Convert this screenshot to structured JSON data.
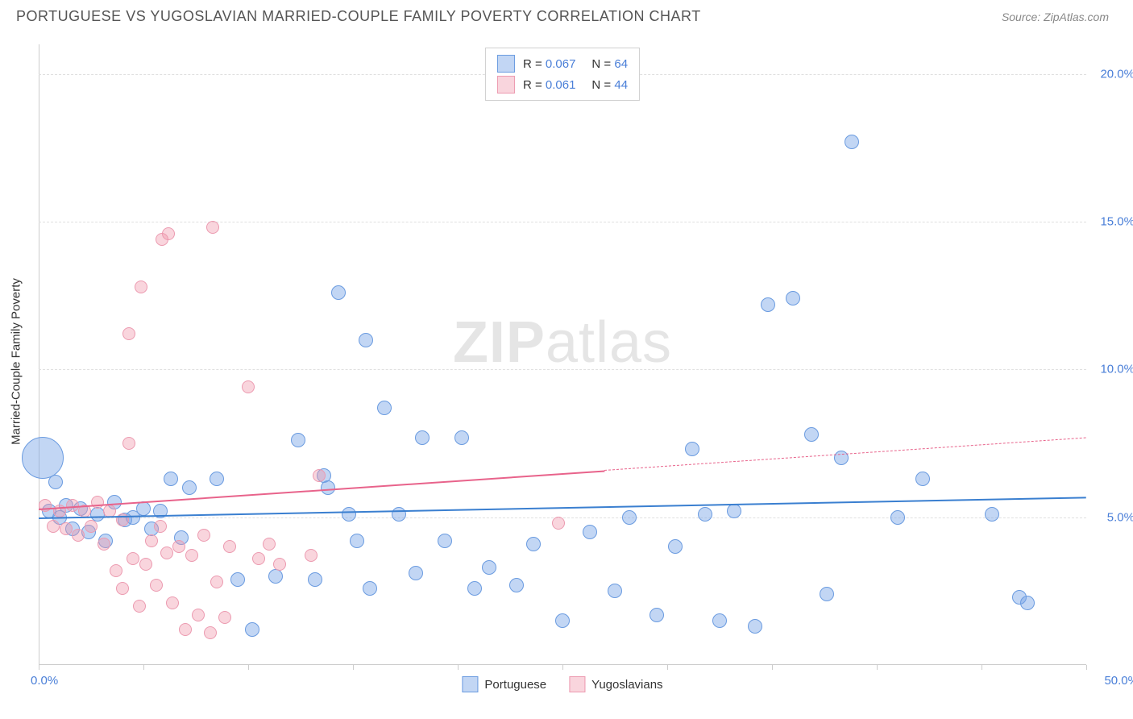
{
  "title": "PORTUGUESE VS YUGOSLAVIAN MARRIED-COUPLE FAMILY POVERTY CORRELATION CHART",
  "source": "Source: ZipAtlas.com",
  "y_axis_label": "Married-Couple Family Poverty",
  "watermark": {
    "zip": "ZIP",
    "atlas": "atlas"
  },
  "chart": {
    "type": "scatter",
    "xlim": [
      0,
      50
    ],
    "ylim": [
      0,
      21
    ],
    "x_ticks": [
      0,
      5,
      10,
      15,
      20,
      25,
      30,
      35,
      40,
      45,
      50
    ],
    "x_tick_labels": {
      "start": "0.0%",
      "end": "50.0%"
    },
    "y_grid": [
      {
        "v": 5,
        "label": "5.0%"
      },
      {
        "v": 10,
        "label": "10.0%"
      },
      {
        "v": 15,
        "label": "15.0%"
      },
      {
        "v": 20,
        "label": "20.0%"
      }
    ],
    "background_color": "#ffffff",
    "grid_color": "#e0e0e0",
    "axis_color": "#cccccc",
    "tick_label_color": "#4a7fd8",
    "series": [
      {
        "name": "Portuguese",
        "fill": "rgba(120,165,230,0.45)",
        "stroke": "#6a9be0",
        "line_color": "#3a7fd0",
        "r": "0.067",
        "n": "64",
        "trend": {
          "x1": 0,
          "y1": 5.0,
          "x2": 50,
          "y2": 5.7,
          "solid_to_x": 50
        },
        "points": [
          {
            "x": 0.2,
            "y": 7.0,
            "size": 26
          },
          {
            "x": 0.5,
            "y": 5.2,
            "size": 9
          },
          {
            "x": 0.8,
            "y": 6.2,
            "size": 9
          },
          {
            "x": 1.0,
            "y": 5.0,
            "size": 9
          },
          {
            "x": 1.3,
            "y": 5.4,
            "size": 9
          },
          {
            "x": 1.6,
            "y": 4.6,
            "size": 9
          },
          {
            "x": 2.0,
            "y": 5.3,
            "size": 9
          },
          {
            "x": 2.4,
            "y": 4.5,
            "size": 9
          },
          {
            "x": 2.8,
            "y": 5.1,
            "size": 9
          },
          {
            "x": 3.2,
            "y": 4.2,
            "size": 9
          },
          {
            "x": 3.6,
            "y": 5.5,
            "size": 9
          },
          {
            "x": 4.1,
            "y": 4.9,
            "size": 9
          },
          {
            "x": 4.5,
            "y": 5.0,
            "size": 9
          },
          {
            "x": 5.0,
            "y": 5.3,
            "size": 9
          },
          {
            "x": 5.4,
            "y": 4.6,
            "size": 9
          },
          {
            "x": 5.8,
            "y": 5.2,
            "size": 9
          },
          {
            "x": 6.3,
            "y": 6.3,
            "size": 9
          },
          {
            "x": 6.8,
            "y": 4.3,
            "size": 9
          },
          {
            "x": 7.2,
            "y": 6.0,
            "size": 9
          },
          {
            "x": 8.5,
            "y": 6.3,
            "size": 9
          },
          {
            "x": 9.5,
            "y": 2.9,
            "size": 9
          },
          {
            "x": 10.2,
            "y": 1.2,
            "size": 9
          },
          {
            "x": 11.3,
            "y": 3.0,
            "size": 9
          },
          {
            "x": 12.4,
            "y": 7.6,
            "size": 9
          },
          {
            "x": 13.2,
            "y": 2.9,
            "size": 9
          },
          {
            "x": 13.6,
            "y": 6.4,
            "size": 9
          },
          {
            "x": 13.8,
            "y": 6.0,
            "size": 9
          },
          {
            "x": 14.3,
            "y": 12.6,
            "size": 9
          },
          {
            "x": 14.8,
            "y": 5.1,
            "size": 9
          },
          {
            "x": 15.2,
            "y": 4.2,
            "size": 9
          },
          {
            "x": 15.6,
            "y": 11.0,
            "size": 9
          },
          {
            "x": 15.8,
            "y": 2.6,
            "size": 9
          },
          {
            "x": 16.5,
            "y": 8.7,
            "size": 9
          },
          {
            "x": 17.2,
            "y": 5.1,
            "size": 9
          },
          {
            "x": 18.0,
            "y": 3.1,
            "size": 9
          },
          {
            "x": 18.3,
            "y": 7.7,
            "size": 9
          },
          {
            "x": 19.4,
            "y": 4.2,
            "size": 9
          },
          {
            "x": 20.2,
            "y": 7.7,
            "size": 9
          },
          {
            "x": 20.8,
            "y": 2.6,
            "size": 9
          },
          {
            "x": 21.5,
            "y": 3.3,
            "size": 9
          },
          {
            "x": 22.8,
            "y": 2.7,
            "size": 9
          },
          {
            "x": 23.6,
            "y": 4.1,
            "size": 9
          },
          {
            "x": 25.0,
            "y": 1.5,
            "size": 9
          },
          {
            "x": 26.3,
            "y": 4.5,
            "size": 9
          },
          {
            "x": 27.5,
            "y": 2.5,
            "size": 9
          },
          {
            "x": 28.2,
            "y": 5.0,
            "size": 9
          },
          {
            "x": 29.5,
            "y": 1.7,
            "size": 9
          },
          {
            "x": 30.4,
            "y": 4.0,
            "size": 9
          },
          {
            "x": 31.2,
            "y": 7.3,
            "size": 9
          },
          {
            "x": 31.8,
            "y": 5.1,
            "size": 9
          },
          {
            "x": 32.5,
            "y": 1.5,
            "size": 9
          },
          {
            "x": 33.2,
            "y": 5.2,
            "size": 9
          },
          {
            "x": 34.2,
            "y": 1.3,
            "size": 9
          },
          {
            "x": 34.8,
            "y": 12.2,
            "size": 9
          },
          {
            "x": 36.0,
            "y": 12.4,
            "size": 9
          },
          {
            "x": 36.9,
            "y": 7.8,
            "size": 9
          },
          {
            "x": 37.6,
            "y": 2.4,
            "size": 9
          },
          {
            "x": 38.3,
            "y": 7.0,
            "size": 9
          },
          {
            "x": 38.8,
            "y": 17.7,
            "size": 9
          },
          {
            "x": 41.0,
            "y": 5.0,
            "size": 9
          },
          {
            "x": 42.2,
            "y": 6.3,
            "size": 9
          },
          {
            "x": 45.5,
            "y": 5.1,
            "size": 9
          },
          {
            "x": 46.8,
            "y": 2.3,
            "size": 9
          },
          {
            "x": 47.2,
            "y": 2.1,
            "size": 9
          }
        ]
      },
      {
        "name": "Yugoslavians",
        "fill": "rgba(240,150,170,0.4)",
        "stroke": "#ec9ab0",
        "line_color": "#e8638b",
        "r": "0.061",
        "n": "44",
        "trend": {
          "x1": 0,
          "y1": 5.3,
          "x2": 50,
          "y2": 7.7,
          "solid_to_x": 27
        },
        "points": [
          {
            "x": 0.3,
            "y": 5.4,
            "size": 8
          },
          {
            "x": 0.7,
            "y": 4.7,
            "size": 8
          },
          {
            "x": 1.0,
            "y": 5.2,
            "size": 8
          },
          {
            "x": 1.3,
            "y": 4.6,
            "size": 8
          },
          {
            "x": 1.6,
            "y": 5.4,
            "size": 8
          },
          {
            "x": 1.9,
            "y": 4.4,
            "size": 8
          },
          {
            "x": 2.2,
            "y": 5.2,
            "size": 8
          },
          {
            "x": 2.5,
            "y": 4.7,
            "size": 8
          },
          {
            "x": 2.8,
            "y": 5.5,
            "size": 8
          },
          {
            "x": 3.1,
            "y": 4.1,
            "size": 8
          },
          {
            "x": 3.4,
            "y": 5.2,
            "size": 8
          },
          {
            "x": 3.7,
            "y": 3.2,
            "size": 8
          },
          {
            "x": 4.0,
            "y": 4.9,
            "size": 8
          },
          {
            "x": 4.0,
            "y": 2.6,
            "size": 8
          },
          {
            "x": 4.3,
            "y": 11.2,
            "size": 8
          },
          {
            "x": 4.3,
            "y": 7.5,
            "size": 8
          },
          {
            "x": 4.5,
            "y": 3.6,
            "size": 8
          },
          {
            "x": 4.8,
            "y": 2.0,
            "size": 8
          },
          {
            "x": 4.9,
            "y": 12.8,
            "size": 8
          },
          {
            "x": 5.1,
            "y": 3.4,
            "size": 8
          },
          {
            "x": 5.4,
            "y": 4.2,
            "size": 8
          },
          {
            "x": 5.6,
            "y": 2.7,
            "size": 8
          },
          {
            "x": 5.8,
            "y": 4.7,
            "size": 8
          },
          {
            "x": 5.9,
            "y": 14.4,
            "size": 8
          },
          {
            "x": 6.1,
            "y": 3.8,
            "size": 8
          },
          {
            "x": 6.2,
            "y": 14.6,
            "size": 8
          },
          {
            "x": 6.4,
            "y": 2.1,
            "size": 8
          },
          {
            "x": 6.7,
            "y": 4.0,
            "size": 8
          },
          {
            "x": 7.0,
            "y": 1.2,
            "size": 8
          },
          {
            "x": 7.3,
            "y": 3.7,
            "size": 8
          },
          {
            "x": 7.6,
            "y": 1.7,
            "size": 8
          },
          {
            "x": 7.9,
            "y": 4.4,
            "size": 8
          },
          {
            "x": 8.2,
            "y": 1.1,
            "size": 8
          },
          {
            "x": 8.3,
            "y": 14.8,
            "size": 8
          },
          {
            "x": 8.5,
            "y": 2.8,
            "size": 8
          },
          {
            "x": 8.9,
            "y": 1.6,
            "size": 8
          },
          {
            "x": 9.1,
            "y": 4.0,
            "size": 8
          },
          {
            "x": 10.0,
            "y": 9.4,
            "size": 8
          },
          {
            "x": 10.5,
            "y": 3.6,
            "size": 8
          },
          {
            "x": 11.0,
            "y": 4.1,
            "size": 8
          },
          {
            "x": 11.5,
            "y": 3.4,
            "size": 8
          },
          {
            "x": 13.0,
            "y": 3.7,
            "size": 8
          },
          {
            "x": 13.4,
            "y": 6.4,
            "size": 8
          },
          {
            "x": 24.8,
            "y": 4.8,
            "size": 8
          }
        ]
      }
    ]
  },
  "legend_top_label": {
    "R": "R =",
    "N": "N ="
  },
  "legend_bottom": [
    "Portuguese",
    "Yugoslavians"
  ]
}
